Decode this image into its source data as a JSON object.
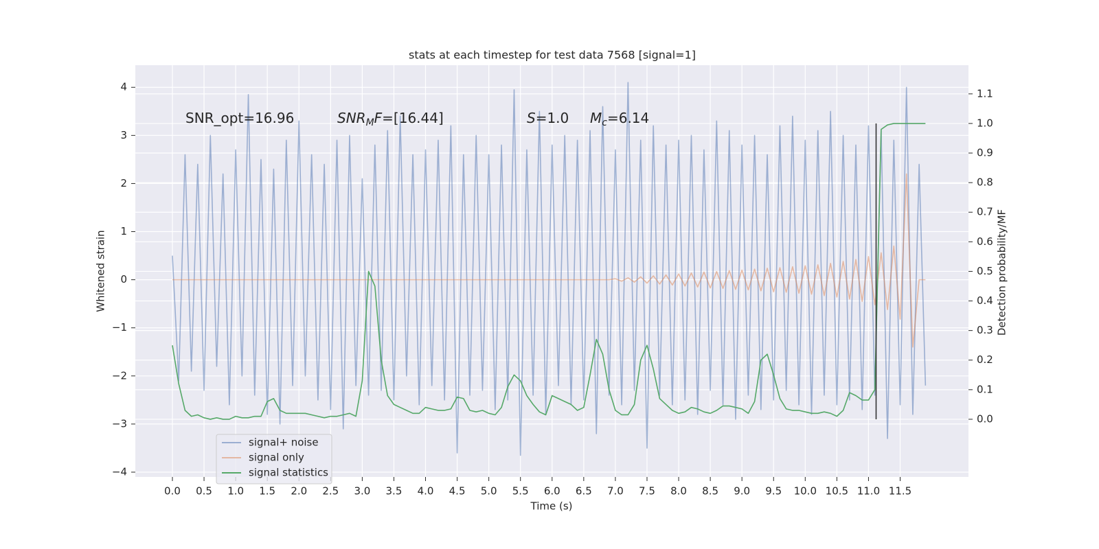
{
  "chart_data": {
    "type": "line",
    "title": "stats at each timestep for test data 7568 [signal=1]",
    "x_label": "Time (s)",
    "y_label": "Whitened strain",
    "y2_label": "Detection probability/MF",
    "grid": true,
    "legend": "lower left",
    "xlim": [
      -0.586,
      12.58
    ],
    "ylim": [
      -4.1,
      4.46
    ],
    "y2lim": [
      -0.195,
      1.197
    ],
    "xticks": [
      {
        "value": 0,
        "label": "0.0"
      },
      0.5,
      {
        "value": 1,
        "label": "1.0"
      },
      1.5,
      {
        "value": 2,
        "label": "2.0"
      },
      2.5,
      {
        "value": 3,
        "label": "3.0"
      },
      3.5,
      {
        "value": 4,
        "label": "4.0"
      },
      4.5,
      {
        "value": 5,
        "label": "5.0"
      },
      5.5,
      {
        "value": 6,
        "label": "6.0"
      },
      6.5,
      {
        "value": 7,
        "label": "7.0"
      },
      7.5,
      {
        "value": 8,
        "label": "8.0"
      },
      8.5,
      {
        "value": 9,
        "label": "9.0"
      },
      9.5,
      {
        "value": 10,
        "label": "10.0"
      },
      10.5,
      {
        "value": 11,
        "label": "11.0"
      },
      11.5
    ],
    "yticks": [
      {
        "value": -4,
        "label": "−4"
      },
      {
        "value": -3,
        "label": "−3"
      },
      {
        "value": -2,
        "label": "−2"
      },
      {
        "value": -1,
        "label": "−1"
      },
      0,
      1,
      2,
      3,
      4
    ],
    "y2ticks": [
      {
        "value": 0,
        "label": "0.0"
      },
      0.1,
      0.2,
      0.3,
      0.4,
      0.5,
      0.6,
      0.7,
      0.8,
      0.9,
      {
        "value": 1,
        "label": "1.0"
      },
      1.1
    ],
    "annotations": [
      {
        "parts": [
          {
            "text": "SNR_opt=16.96"
          }
        ]
      },
      {
        "parts": [
          {
            "text": "SNR",
            "style": "italic"
          },
          {
            "text": "M",
            "style": "italic-sub"
          },
          {
            "text": "F",
            "style": "italic"
          },
          {
            "text": "=[16.44]"
          }
        ]
      },
      {
        "parts": [
          {
            "text": "S",
            "style": "italic"
          },
          {
            "text": "=1.0"
          }
        ]
      },
      {
        "parts": [
          {
            "text": "M",
            "style": "italic"
          },
          {
            "text": "c",
            "style": "italic-sub"
          },
          {
            "text": "=6.14"
          }
        ]
      }
    ],
    "vline": {
      "x": 11.12,
      "y2": [
        0,
        1
      ],
      "color": "#333333"
    },
    "x": [
      0,
      0.1,
      0.2,
      0.3,
      0.4,
      0.5,
      0.6,
      0.7,
      0.8,
      0.9,
      1,
      1.1,
      1.2,
      1.3,
      1.4,
      1.5,
      1.6,
      1.7,
      1.8,
      1.9,
      2,
      2.1,
      2.2,
      2.3,
      2.4,
      2.5,
      2.6,
      2.7,
      2.8,
      2.9,
      3,
      3.1,
      3.2,
      3.3,
      3.4,
      3.5,
      3.6,
      3.7,
      3.8,
      3.9,
      4,
      4.1,
      4.2,
      4.3,
      4.4,
      4.5,
      4.6,
      4.7,
      4.8,
      4.9,
      5,
      5.1,
      5.2,
      5.3,
      5.4,
      5.5,
      5.6,
      5.7,
      5.8,
      5.9,
      6,
      6.1,
      6.2,
      6.3,
      6.4,
      6.5,
      6.6,
      6.7,
      6.8,
      6.9,
      7,
      7.1,
      7.2,
      7.3,
      7.4,
      7.5,
      7.6,
      7.7,
      7.8,
      7.9,
      8,
      8.1,
      8.2,
      8.3,
      8.4,
      8.5,
      8.6,
      8.7,
      8.8,
      8.9,
      9,
      9.1,
      9.2,
      9.3,
      9.4,
      9.5,
      9.6,
      9.7,
      9.8,
      9.9,
      10,
      10.1,
      10.2,
      10.3,
      10.4,
      10.5,
      10.6,
      10.7,
      10.8,
      10.9,
      11,
      11.1,
      11.2,
      11.3,
      11.4,
      11.5,
      11.6,
      11.7,
      11.8,
      11.9
    ],
    "series": [
      {
        "name": "signal+ noise",
        "color": "#4c72b0",
        "opacity": 0.5,
        "axis": "y",
        "values": [
          0.5,
          -2.1,
          2.6,
          -1.9,
          2.4,
          -2.3,
          3.0,
          -1.8,
          2.2,
          -2.6,
          2.7,
          -2.0,
          3.85,
          -2.4,
          2.5,
          -2.8,
          2.3,
          -3.0,
          2.9,
          -2.2,
          3.3,
          -2.0,
          2.6,
          -2.5,
          2.4,
          -2.7,
          2.9,
          -3.1,
          3.0,
          -2.2,
          2.1,
          -2.4,
          2.8,
          -2.3,
          3.1,
          -2.5,
          3.4,
          -2.0,
          2.6,
          -2.6,
          2.7,
          -2.2,
          2.9,
          -2.5,
          3.2,
          -3.6,
          2.6,
          -2.4,
          3.0,
          -2.3,
          2.6,
          -2.7,
          2.8,
          -2.5,
          3.95,
          -3.65,
          2.7,
          -2.4,
          3.5,
          -2.8,
          2.8,
          -2.2,
          3.0,
          -2.6,
          2.9,
          -2.5,
          3.1,
          -3.2,
          3.6,
          -2.4,
          2.7,
          -2.6,
          4.1,
          -2.3,
          2.9,
          -3.5,
          3.2,
          -2.4,
          2.8,
          -2.6,
          2.9,
          -2.5,
          3.0,
          -2.8,
          2.7,
          -2.3,
          3.3,
          -2.6,
          3.1,
          -2.9,
          2.8,
          -2.4,
          3.0,
          -2.7,
          2.6,
          -2.5,
          3.2,
          -2.3,
          3.4,
          -2.6,
          2.9,
          -2.8,
          3.1,
          -2.4,
          3.5,
          -2.6,
          3.0,
          -2.5,
          2.8,
          -2.7,
          3.2,
          -2.4,
          3.1,
          -3.3,
          2.9,
          -2.6,
          4.0,
          -2.8,
          2.4,
          -2.2
        ]
      },
      {
        "name": "signal only",
        "color": "#dd8452",
        "opacity": 0.5,
        "axis": "y",
        "values": [
          0,
          0,
          0,
          0,
          0,
          0,
          0,
          0,
          0,
          0,
          0,
          0,
          0,
          0,
          0,
          0,
          0,
          0,
          0,
          0,
          0,
          0,
          0,
          0,
          0,
          0,
          0,
          0,
          0,
          0,
          0,
          0,
          0,
          0,
          0,
          0,
          0,
          0,
          0,
          0,
          0,
          0,
          0,
          0,
          0,
          0,
          0,
          0,
          0,
          0,
          0,
          0,
          0,
          0,
          0,
          0,
          0,
          0,
          0,
          0,
          0,
          0,
          0,
          0,
          0,
          0,
          0,
          0,
          0,
          0,
          0.02,
          -0.03,
          0.04,
          -0.05,
          0.06,
          -0.07,
          0.08,
          -0.09,
          0.1,
          -0.11,
          0.12,
          -0.13,
          0.14,
          -0.15,
          0.16,
          -0.17,
          0.17,
          -0.18,
          0.19,
          -0.2,
          0.2,
          -0.21,
          0.22,
          -0.23,
          0.24,
          -0.25,
          0.25,
          -0.26,
          0.27,
          -0.28,
          0.29,
          -0.3,
          0.31,
          -0.33,
          0.34,
          -0.36,
          0.38,
          -0.4,
          0.42,
          -0.45,
          0.48,
          -0.52,
          0.56,
          -0.62,
          0.7,
          -0.82,
          2.2,
          -1.4,
          0,
          0
        ]
      },
      {
        "name": "signal statistics",
        "color": "#55a868",
        "opacity": 1,
        "axis": "y2",
        "values": [
          0.25,
          0.12,
          0.03,
          0.01,
          0.015,
          0.005,
          0,
          0.005,
          0,
          0,
          0.01,
          0.005,
          0.005,
          0.01,
          0.01,
          0.06,
          0.07,
          0.03,
          0.02,
          0.02,
          0.02,
          0.02,
          0.015,
          0.01,
          0.005,
          0.01,
          0.01,
          0.015,
          0.02,
          0.01,
          0.13,
          0.5,
          0.45,
          0.2,
          0.08,
          0.05,
          0.04,
          0.03,
          0.02,
          0.02,
          0.04,
          0.035,
          0.03,
          0.03,
          0.035,
          0.075,
          0.07,
          0.03,
          0.025,
          0.03,
          0.02,
          0.015,
          0.04,
          0.11,
          0.15,
          0.13,
          0.08,
          0.05,
          0.025,
          0.015,
          0.08,
          0.07,
          0.06,
          0.05,
          0.03,
          0.04,
          0.15,
          0.27,
          0.22,
          0.1,
          0.03,
          0.015,
          0.015,
          0.05,
          0.2,
          0.25,
          0.17,
          0.07,
          0.05,
          0.03,
          0.02,
          0.025,
          0.04,
          0.035,
          0.025,
          0.02,
          0.03,
          0.045,
          0.045,
          0.04,
          0.035,
          0.02,
          0.06,
          0.2,
          0.22,
          0.15,
          0.07,
          0.035,
          0.03,
          0.03,
          0.025,
          0.02,
          0.02,
          0.025,
          0.02,
          0.01,
          0.03,
          0.09,
          0.08,
          0.065,
          0.065,
          0.1,
          0.98,
          0.995,
          1,
          1,
          1,
          1,
          1,
          1
        ]
      }
    ]
  }
}
